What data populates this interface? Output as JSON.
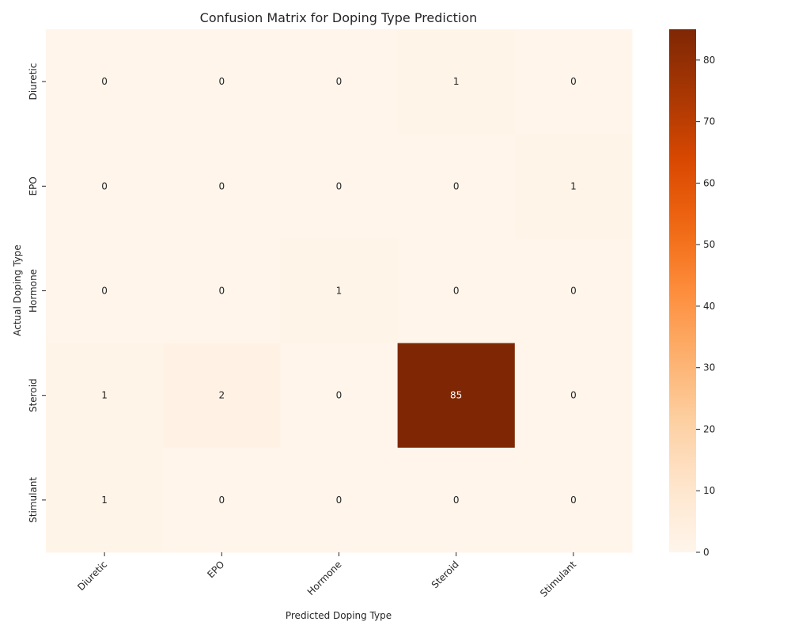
{
  "chart_data": {
    "type": "heatmap",
    "title": "Confusion Matrix for Doping Type Prediction",
    "xlabel": "Predicted Doping Type",
    "ylabel": "Actual Doping Type",
    "x_categories": [
      "Diuretic",
      "EPO",
      "Hormone",
      "Steroid",
      "Stimulant"
    ],
    "y_categories": [
      "Diuretic",
      "EPO",
      "Hormone",
      "Steroid",
      "Stimulant"
    ],
    "values": [
      [
        0,
        0,
        0,
        1,
        0
      ],
      [
        0,
        0,
        0,
        0,
        1
      ],
      [
        0,
        0,
        1,
        0,
        0
      ],
      [
        1,
        2,
        0,
        85,
        0
      ],
      [
        1,
        0,
        0,
        0,
        0
      ]
    ],
    "colormap": "Oranges",
    "color_range": [
      0,
      85
    ],
    "colorbar_ticks": [
      0,
      10,
      20,
      30,
      40,
      50,
      60,
      70,
      80
    ],
    "annotate": true,
    "grid": false
  }
}
